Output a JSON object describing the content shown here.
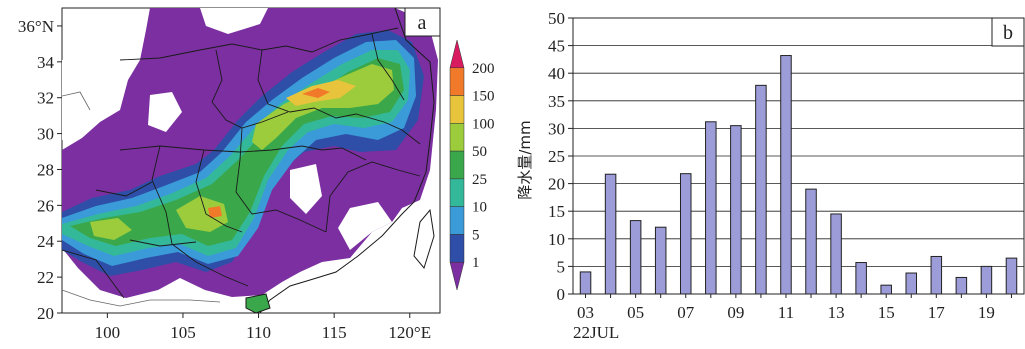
{
  "chart_data": [
    {
      "type": "heatmap",
      "panel_label": "a",
      "x_ticks": [
        "100",
        "105",
        "110",
        "115",
        "120°E"
      ],
      "x_tick_values": [
        100,
        105,
        110,
        115,
        120
      ],
      "xlim": [
        97,
        122
      ],
      "y_ticks": [
        "36°N",
        "34",
        "32",
        "30",
        "28",
        "26",
        "24",
        "22",
        "20"
      ],
      "y_tick_values": [
        36,
        34,
        32,
        30,
        28,
        26,
        24,
        22,
        20
      ],
      "ylim": [
        20,
        37
      ],
      "colorbar": {
        "labels": [
          "200",
          "150",
          "100",
          "50",
          "25",
          "10",
          "5",
          "1"
        ],
        "levels": [
          200,
          150,
          100,
          50,
          25,
          10,
          5,
          1
        ],
        "colors": [
          "#d81b60",
          "#f07a2a",
          "#e8c33c",
          "#9ccc3c",
          "#3aa84a",
          "#34b89a",
          "#3b9bd8",
          "#2e4ea8",
          "#7b2fa0"
        ]
      }
    },
    {
      "type": "bar",
      "panel_label": "b",
      "x_tick_labels": [
        "03",
        "05",
        "07",
        "09",
        "11",
        "13",
        "15",
        "17",
        "19"
      ],
      "x_sublabel": "22JUL",
      "x": [
        3,
        4,
        5,
        6,
        7,
        8,
        9,
        10,
        11,
        12,
        13,
        14,
        15,
        16,
        17,
        18,
        19,
        20
      ],
      "values": [
        4,
        21.7,
        13.3,
        12.1,
        21.8,
        31.2,
        30.5,
        37.8,
        43.2,
        19,
        14.5,
        5.7,
        1.6,
        3.8,
        6.8,
        3,
        5,
        6.5
      ],
      "ylabel": "降水量/mm",
      "ylim": [
        0,
        50
      ],
      "y_ticks": [
        0,
        5,
        10,
        15,
        20,
        25,
        30,
        35,
        40,
        45,
        50
      ],
      "grid": true,
      "bar_color": "#9c9cd8"
    }
  ]
}
